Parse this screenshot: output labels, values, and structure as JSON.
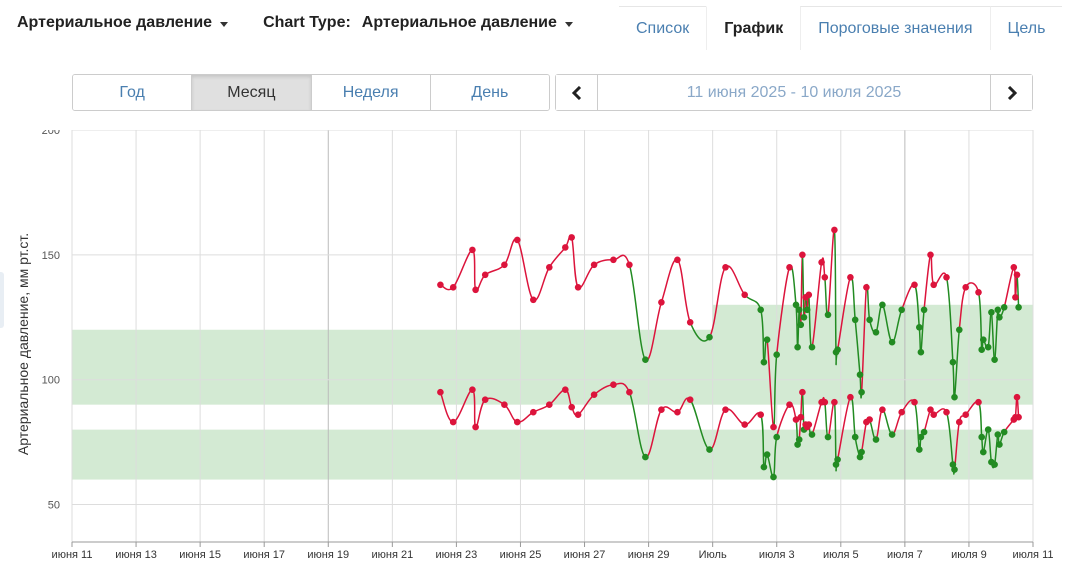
{
  "header": {
    "metric_selector": "Артериальное давление",
    "chart_type_label": "Chart Type:",
    "chart_type_selector": "Артериальное давление"
  },
  "tabs": [
    {
      "label": "Список",
      "active": false
    },
    {
      "label": "График",
      "active": true
    },
    {
      "label": "Пороговые значения",
      "active": false
    },
    {
      "label": "Цель",
      "active": false
    }
  ],
  "period": {
    "options": [
      "Год",
      "Месяц",
      "Неделя",
      "День"
    ],
    "active": "Месяц"
  },
  "date_nav": {
    "range": "11 июня 2025 - 10 июля 2025",
    "prev_icon": "chevron-left-icon",
    "next_icon": "chevron-right-icon"
  },
  "colors": {
    "above": "#dc143c",
    "within": "#228b22",
    "band": "#d3ead3",
    "grid": "#dddddd",
    "axis": "#999999"
  },
  "chart_data": {
    "type": "line",
    "ylabel": "Артериальное давление, мм рт.ст.",
    "ylim": [
      35,
      200
    ],
    "yticks": [
      50,
      100,
      150,
      200
    ],
    "xlim": [
      0,
      30
    ],
    "xticks": [
      {
        "x": 0,
        "label": "июня 11"
      },
      {
        "x": 2,
        "label": "июня 13"
      },
      {
        "x": 4,
        "label": "июня 15"
      },
      {
        "x": 6,
        "label": "июня 17"
      },
      {
        "x": 8,
        "label": "июня 19"
      },
      {
        "x": 10,
        "label": "июня 21"
      },
      {
        "x": 12,
        "label": "июня 23"
      },
      {
        "x": 14,
        "label": "июня 25"
      },
      {
        "x": 16,
        "label": "июня 27"
      },
      {
        "x": 18,
        "label": "июня 29"
      },
      {
        "x": 20,
        "label": "Июль"
      },
      {
        "x": 22,
        "label": "июля 3"
      },
      {
        "x": 24,
        "label": "июля 5"
      },
      {
        "x": 26,
        "label": "июля 7"
      },
      {
        "x": 28,
        "label": "июля 9"
      },
      {
        "x": 30,
        "label": "июля 11"
      }
    ],
    "target_bands": [
      {
        "series": "systolic",
        "range": [
          90,
          120
        ],
        "x_end": 20
      },
      {
        "series": "systolic",
        "range": [
          90,
          130
        ],
        "x_start": 20
      },
      {
        "series": "diastolic",
        "range": [
          60,
          80
        ]
      }
    ],
    "series": [
      {
        "key": "systolic",
        "points": [
          [
            11.5,
            138
          ],
          [
            11.9,
            137
          ],
          [
            12.5,
            152
          ],
          [
            12.6,
            136
          ],
          [
            12.9,
            142
          ],
          [
            13.5,
            146
          ],
          [
            13.9,
            156
          ],
          [
            14.4,
            132
          ],
          [
            14.9,
            145
          ],
          [
            15.4,
            153
          ],
          [
            15.6,
            157
          ],
          [
            15.8,
            137
          ],
          [
            16.3,
            146
          ],
          [
            16.9,
            148
          ],
          [
            17.4,
            146
          ],
          [
            17.9,
            108
          ],
          [
            18.4,
            131
          ],
          [
            18.9,
            148
          ],
          [
            19.3,
            123
          ],
          [
            19.9,
            117
          ],
          [
            20.4,
            145
          ],
          [
            21.0,
            134
          ],
          [
            21.5,
            128
          ],
          [
            21.6,
            107
          ],
          [
            21.7,
            116
          ],
          [
            21.9,
            81
          ],
          [
            22.0,
            110
          ],
          [
            22.4,
            145
          ],
          [
            22.6,
            130
          ],
          [
            22.65,
            113
          ],
          [
            22.7,
            128
          ],
          [
            22.75,
            122
          ],
          [
            22.8,
            150
          ],
          [
            22.85,
            125
          ],
          [
            22.9,
            133
          ],
          [
            22.95,
            128
          ],
          [
            23.0,
            134
          ],
          [
            23.1,
            113
          ],
          [
            23.4,
            147
          ],
          [
            23.5,
            141
          ],
          [
            23.6,
            126
          ],
          [
            23.8,
            160
          ],
          [
            23.85,
            111
          ],
          [
            23.9,
            112
          ],
          [
            24.3,
            141
          ],
          [
            24.45,
            124
          ],
          [
            24.6,
            102
          ],
          [
            24.65,
            95
          ],
          [
            24.8,
            137
          ],
          [
            24.9,
            124
          ],
          [
            25.1,
            119
          ],
          [
            25.3,
            130
          ],
          [
            25.6,
            115
          ],
          [
            25.9,
            128
          ],
          [
            26.3,
            138
          ],
          [
            26.45,
            121
          ],
          [
            26.5,
            111
          ],
          [
            26.6,
            128
          ],
          [
            26.8,
            150
          ],
          [
            26.9,
            138
          ],
          [
            27.3,
            141
          ],
          [
            27.5,
            107
          ],
          [
            27.55,
            93
          ],
          [
            27.7,
            120
          ],
          [
            27.9,
            137
          ],
          [
            28.3,
            135
          ],
          [
            28.4,
            112
          ],
          [
            28.45,
            116
          ],
          [
            28.6,
            113
          ],
          [
            28.7,
            127
          ],
          [
            28.8,
            108
          ],
          [
            28.9,
            128
          ],
          [
            28.95,
            125
          ],
          [
            29.1,
            129
          ],
          [
            29.4,
            145
          ],
          [
            29.45,
            133
          ],
          [
            29.5,
            142
          ],
          [
            29.55,
            129
          ]
        ]
      },
      {
        "key": "diastolic",
        "points": [
          [
            11.5,
            95
          ],
          [
            11.9,
            83
          ],
          [
            12.5,
            96
          ],
          [
            12.6,
            81
          ],
          [
            12.9,
            92
          ],
          [
            13.5,
            90
          ],
          [
            13.9,
            83
          ],
          [
            14.4,
            87
          ],
          [
            14.9,
            90
          ],
          [
            15.4,
            96
          ],
          [
            15.6,
            89
          ],
          [
            15.8,
            86
          ],
          [
            16.3,
            94
          ],
          [
            16.9,
            98
          ],
          [
            17.4,
            95
          ],
          [
            17.9,
            69
          ],
          [
            18.4,
            88
          ],
          [
            18.9,
            87
          ],
          [
            19.3,
            92
          ],
          [
            19.9,
            72
          ],
          [
            20.4,
            88
          ],
          [
            21.0,
            82
          ],
          [
            21.5,
            86
          ],
          [
            21.6,
            65
          ],
          [
            21.7,
            70
          ],
          [
            21.9,
            61
          ],
          [
            22.0,
            77
          ],
          [
            22.4,
            90
          ],
          [
            22.6,
            84
          ],
          [
            22.65,
            74
          ],
          [
            22.7,
            76
          ],
          [
            22.75,
            85
          ],
          [
            22.8,
            95
          ],
          [
            22.85,
            80
          ],
          [
            22.9,
            82
          ],
          [
            22.95,
            81
          ],
          [
            23.0,
            82
          ],
          [
            23.1,
            78
          ],
          [
            23.4,
            91
          ],
          [
            23.5,
            91
          ],
          [
            23.6,
            77
          ],
          [
            23.8,
            91
          ],
          [
            23.85,
            66
          ],
          [
            23.9,
            68
          ],
          [
            24.3,
            93
          ],
          [
            24.45,
            77
          ],
          [
            24.6,
            69
          ],
          [
            24.65,
            71
          ],
          [
            24.8,
            83
          ],
          [
            24.9,
            84
          ],
          [
            25.1,
            76
          ],
          [
            25.3,
            88
          ],
          [
            25.6,
            78
          ],
          [
            25.9,
            87
          ],
          [
            26.3,
            91
          ],
          [
            26.45,
            72
          ],
          [
            26.5,
            77
          ],
          [
            26.6,
            79
          ],
          [
            26.8,
            88
          ],
          [
            26.9,
            86
          ],
          [
            27.3,
            87
          ],
          [
            27.5,
            66
          ],
          [
            27.55,
            64
          ],
          [
            27.7,
            83
          ],
          [
            27.9,
            86
          ],
          [
            28.3,
            91
          ],
          [
            28.4,
            77
          ],
          [
            28.45,
            71
          ],
          [
            28.6,
            80
          ],
          [
            28.7,
            67
          ],
          [
            28.8,
            66
          ],
          [
            28.9,
            78
          ],
          [
            28.95,
            74
          ],
          [
            29.1,
            79
          ],
          [
            29.4,
            84
          ],
          [
            29.45,
            85
          ],
          [
            29.5,
            93
          ],
          [
            29.55,
            85
          ]
        ]
      }
    ]
  }
}
